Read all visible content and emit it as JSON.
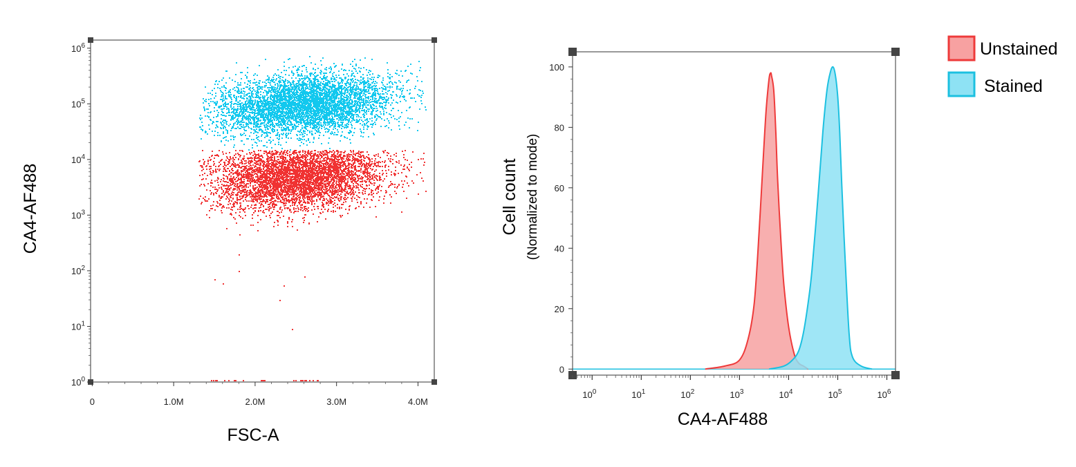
{
  "colors": {
    "unstained_stroke": "#ee3a3a",
    "unstained_fill": "#f7a1a1",
    "unstained_dots": "#f03232",
    "stained_stroke": "#1cc0e0",
    "stained_fill": "#8ee2f4",
    "stained_dots": "#12c8ee"
  },
  "legend": {
    "items": [
      {
        "label": "Unstained",
        "color_key": "unstained"
      },
      {
        "label": "Stained",
        "color_key": "stained"
      }
    ]
  },
  "chart_data": [
    {
      "type": "scatter",
      "xlabel": "FSC-A",
      "ylabel": "CA4-AF488",
      "x_ticks": [
        "0",
        "1.0M",
        "2.0M",
        "3.0M",
        "4.0M"
      ],
      "x_tick_values": [
        0,
        1000000,
        2000000,
        3000000,
        4000000
      ],
      "xlim": [
        -20000,
        4200000
      ],
      "y_scale": "log",
      "y_tick_exponents": [
        0,
        1,
        2,
        3,
        4,
        5,
        6
      ],
      "ylim": [
        1,
        1400000
      ],
      "series": [
        {
          "name": "Stained",
          "color_key": "stained",
          "x_range": [
            1300000,
            4100000
          ],
          "y_center": 100000,
          "y_range": [
            15000,
            800000
          ],
          "x_peak": 2600000
        },
        {
          "name": "Unstained",
          "color_key": "unstained",
          "x_range": [
            1300000,
            4100000
          ],
          "y_center": 5000,
          "y_range": [
            80,
            15000
          ],
          "x_peak": 2500000
        }
      ],
      "outliers": [
        {
          "x": 1500000,
          "y": 70
        },
        {
          "x": 1600000,
          "y": 60
        },
        {
          "x": 1800000,
          "y": 200
        },
        {
          "x": 1800000,
          "y": 100
        },
        {
          "x": 2300000,
          "y": 30
        },
        {
          "x": 2350000,
          "y": 55
        },
        {
          "x": 2450000,
          "y": 9
        },
        {
          "x": 2600000,
          "y": 80
        }
      ]
    },
    {
      "type": "area",
      "xlabel": "CA4-AF488",
      "ylabel": "Cell count",
      "ylabel_sub": "(Normalized to mode)",
      "x_scale": "log",
      "x_tick_exponents": [
        0,
        1,
        2,
        3,
        4,
        5,
        6
      ],
      "xlim": [
        0.4,
        1500000
      ],
      "y_ticks": [
        0,
        20,
        40,
        60,
        80,
        100
      ],
      "ylim": [
        -2,
        105
      ],
      "series": [
        {
          "name": "Unstained",
          "color_key": "unstained",
          "x": [
            200,
            500,
            1000,
            1500,
            2000,
            2500,
            3000,
            3500,
            4000,
            4300,
            4500,
            5000,
            5500,
            6000,
            7000,
            8000,
            10000,
            13000,
            16000,
            20000,
            25000
          ],
          "y": [
            0,
            1,
            3,
            10,
            22,
            45,
            68,
            86,
            96,
            98,
            97,
            92,
            78,
            62,
            42,
            28,
            14,
            5,
            2,
            1,
            0
          ]
        },
        {
          "name": "Stained",
          "color_key": "stained",
          "x": [
            4000,
            8000,
            12000,
            16000,
            20000,
            25000,
            30000,
            40000,
            50000,
            60000,
            70000,
            80000,
            90000,
            100000,
            110000,
            120000,
            140000,
            170000,
            200000,
            300000,
            500000
          ],
          "y": [
            0,
            1,
            3,
            6,
            12,
            22,
            33,
            58,
            79,
            92,
            98,
            100,
            97,
            90,
            78,
            62,
            38,
            12,
            4,
            1,
            0
          ]
        }
      ]
    }
  ]
}
